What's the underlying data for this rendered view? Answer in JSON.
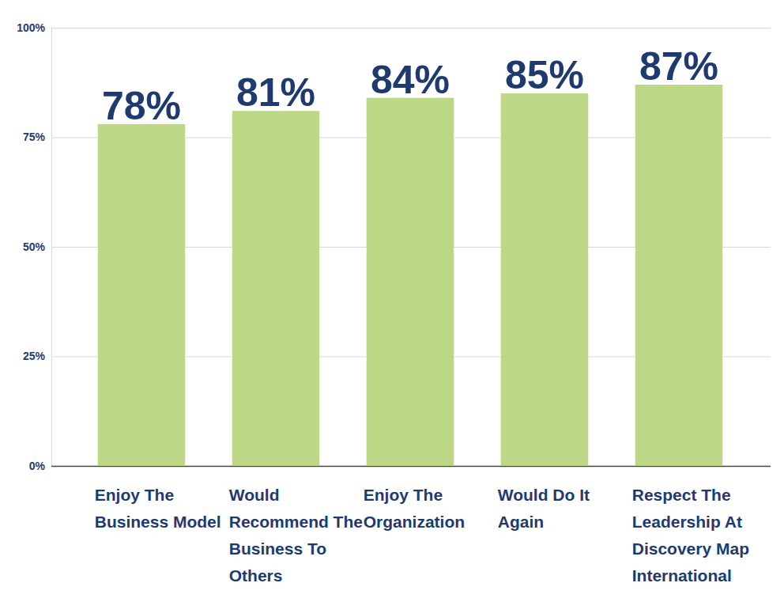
{
  "chart_data": {
    "type": "bar",
    "categories": [
      "Enjoy The Business Model",
      "Would Recommend The Business To Others",
      "Enjoy The Organization",
      "Would Do It Again",
      "Respect The Leadership At Discovery Map International"
    ],
    "values": [
      78,
      81,
      84,
      85,
      87
    ],
    "value_labels": [
      "78%",
      "81%",
      "84%",
      "85%",
      "87%"
    ],
    "data_labels": true,
    "color": "#bcd886",
    "ylim": [
      0,
      100
    ],
    "yticks": [
      {
        "value": 0,
        "label": "0%"
      },
      {
        "value": 25,
        "label": "25%"
      },
      {
        "value": 50,
        "label": "50%"
      },
      {
        "value": 75,
        "label": "75%"
      },
      {
        "value": 100,
        "label": "100%"
      }
    ],
    "grid": true
  }
}
